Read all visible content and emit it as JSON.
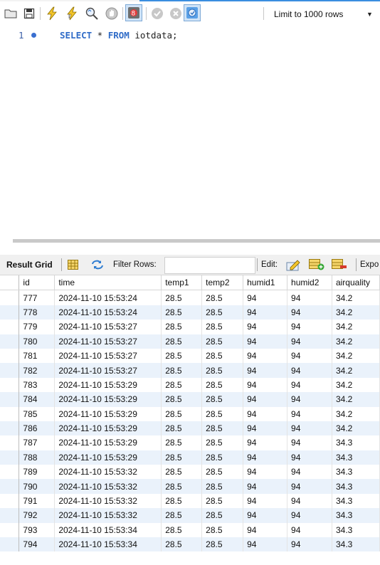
{
  "toolbar": {
    "limit_select": {
      "value": "Limit to 1000 rows"
    },
    "icons": [
      "open-file-icon",
      "save-icon",
      "execute-icon",
      "execute-statement-icon",
      "explain-icon",
      "stop-icon",
      "toggle-error-icon",
      "commit-icon",
      "rollback-icon",
      "autocommit-icon"
    ]
  },
  "editor": {
    "line_number": "1",
    "code_kw1": "SELECT",
    "code_star": " * ",
    "code_kw2": "FROM",
    "code_rest": " iotdata;"
  },
  "result_bar": {
    "result_grid_label": "Result Grid",
    "filter_label": "Filter Rows:",
    "filter_value": "",
    "edit_label": "Edit:",
    "export_label": "Expo"
  },
  "grid": {
    "columns": [
      "id",
      "time",
      "temp1",
      "temp2",
      "humid1",
      "humid2",
      "airquality"
    ],
    "rows": [
      [
        "777",
        "2024-11-10 15:53:24",
        "28.5",
        "28.5",
        "94",
        "94",
        "34.2"
      ],
      [
        "778",
        "2024-11-10 15:53:24",
        "28.5",
        "28.5",
        "94",
        "94",
        "34.2"
      ],
      [
        "779",
        "2024-11-10 15:53:27",
        "28.5",
        "28.5",
        "94",
        "94",
        "34.2"
      ],
      [
        "780",
        "2024-11-10 15:53:27",
        "28.5",
        "28.5",
        "94",
        "94",
        "34.2"
      ],
      [
        "781",
        "2024-11-10 15:53:27",
        "28.5",
        "28.5",
        "94",
        "94",
        "34.2"
      ],
      [
        "782",
        "2024-11-10 15:53:27",
        "28.5",
        "28.5",
        "94",
        "94",
        "34.2"
      ],
      [
        "783",
        "2024-11-10 15:53:29",
        "28.5",
        "28.5",
        "94",
        "94",
        "34.2"
      ],
      [
        "784",
        "2024-11-10 15:53:29",
        "28.5",
        "28.5",
        "94",
        "94",
        "34.2"
      ],
      [
        "785",
        "2024-11-10 15:53:29",
        "28.5",
        "28.5",
        "94",
        "94",
        "34.2"
      ],
      [
        "786",
        "2024-11-10 15:53:29",
        "28.5",
        "28.5",
        "94",
        "94",
        "34.2"
      ],
      [
        "787",
        "2024-11-10 15:53:29",
        "28.5",
        "28.5",
        "94",
        "94",
        "34.3"
      ],
      [
        "788",
        "2024-11-10 15:53:29",
        "28.5",
        "28.5",
        "94",
        "94",
        "34.3"
      ],
      [
        "789",
        "2024-11-10 15:53:32",
        "28.5",
        "28.5",
        "94",
        "94",
        "34.3"
      ],
      [
        "790",
        "2024-11-10 15:53:32",
        "28.5",
        "28.5",
        "94",
        "94",
        "34.3"
      ],
      [
        "791",
        "2024-11-10 15:53:32",
        "28.5",
        "28.5",
        "94",
        "94",
        "34.3"
      ],
      [
        "792",
        "2024-11-10 15:53:32",
        "28.5",
        "28.5",
        "94",
        "94",
        "34.3"
      ],
      [
        "793",
        "2024-11-10 15:53:34",
        "28.5",
        "28.5",
        "94",
        "94",
        "34.3"
      ],
      [
        "794",
        "2024-11-10 15:53:34",
        "28.5",
        "28.5",
        "94",
        "94",
        "34.3"
      ]
    ]
  }
}
